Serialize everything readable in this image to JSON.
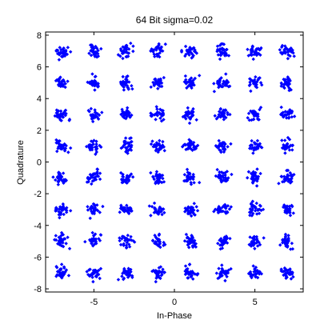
{
  "chart_data": {
    "type": "scatter",
    "title": "64 Bit sigma=0.02",
    "xlabel": "In-Phase",
    "ylabel": "Quadrature",
    "xlim": [
      -8,
      8
    ],
    "ylim": [
      -8.2,
      8.2
    ],
    "xticks": [
      -5,
      0,
      5
    ],
    "xtick_labels": [
      "-5",
      "0",
      "5"
    ],
    "yticks": [
      -8,
      -6,
      -4,
      -2,
      0,
      2,
      4,
      6,
      8
    ],
    "ytick_labels": [
      "-8",
      "-6",
      "-4",
      "-2",
      "0",
      "2",
      "4",
      "6",
      "8"
    ],
    "grid": false,
    "marker": "diamond",
    "series": [
      {
        "color": "#0000ff",
        "constellation_levels": [
          -7,
          -5,
          -3,
          -1,
          1,
          3,
          5,
          7
        ],
        "points_per_symbol": 30,
        "cluster_spread": 0.2
      }
    ]
  }
}
